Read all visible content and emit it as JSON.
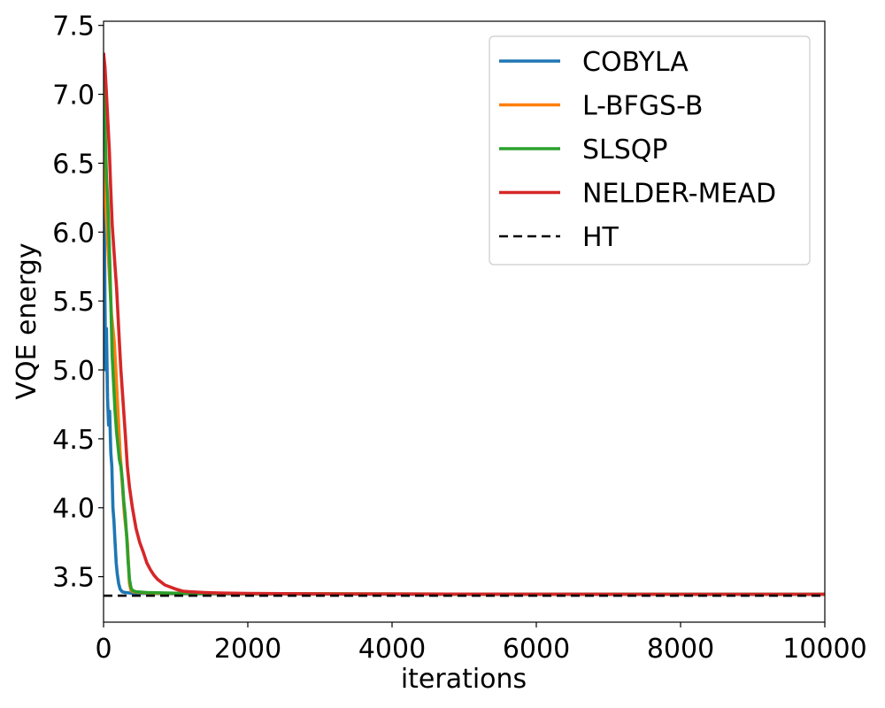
{
  "chart_data": {
    "type": "line",
    "xlabel": "iterations",
    "ylabel": "VQE energy",
    "xlim": [
      0,
      10000
    ],
    "ylim": [
      3.17,
      7.53
    ],
    "xticks": [
      0,
      2000,
      4000,
      6000,
      8000,
      10000
    ],
    "xtick_labels": [
      "0",
      "2000",
      "4000",
      "6000",
      "8000",
      "10000"
    ],
    "yticks": [
      3.5,
      4.0,
      4.5,
      5.0,
      5.5,
      6.0,
      6.5,
      7.0,
      7.5
    ],
    "ytick_labels": [
      "3.5",
      "4.0",
      "4.5",
      "5.0",
      "5.5",
      "6.0",
      "6.5",
      "7.0",
      "7.5"
    ],
    "grid": false,
    "legend_position": "top-right",
    "series": [
      {
        "name": "COBYLA",
        "color": "#1f77b4",
        "style": "solid",
        "x": [
          0,
          10,
          20,
          30,
          40,
          55,
          70,
          85,
          100,
          115,
          130,
          145,
          160,
          175,
          190,
          210,
          230,
          260,
          300,
          400,
          600,
          1000,
          2000,
          4000,
          6000,
          8000,
          10000
        ],
        "y": [
          7.3,
          6.2,
          5.5,
          5.0,
          5.3,
          4.8,
          4.6,
          4.7,
          4.4,
          4.3,
          4.0,
          3.9,
          3.75,
          3.6,
          3.52,
          3.45,
          3.41,
          3.39,
          3.385,
          3.38,
          3.378,
          3.376,
          3.374,
          3.373,
          3.372,
          3.372,
          3.372
        ]
      },
      {
        "name": "L-BFGS-B",
        "color": "#ff7f0e",
        "style": "solid",
        "x": [
          0,
          15,
          30,
          50,
          70,
          90,
          110,
          130,
          150,
          170,
          190,
          210,
          230,
          250,
          270,
          290,
          310,
          330,
          345,
          360,
          380,
          420,
          500,
          700,
          1000,
          2000,
          4000,
          6000,
          8000,
          10000
        ],
        "y": [
          7.3,
          6.6,
          6.2,
          6.0,
          5.8,
          5.6,
          5.4,
          5.3,
          5.2,
          5.0,
          4.8,
          4.6,
          4.4,
          4.25,
          4.1,
          3.95,
          3.85,
          3.75,
          3.6,
          3.45,
          3.4,
          3.39,
          3.385,
          3.38,
          3.378,
          3.376,
          3.374,
          3.373,
          3.372,
          3.372
        ]
      },
      {
        "name": "SLSQP",
        "color": "#2ca02c",
        "style": "solid",
        "x": [
          0,
          20,
          40,
          60,
          80,
          100,
          120,
          140,
          160,
          180,
          200,
          220,
          240,
          260,
          280,
          300,
          320,
          340,
          360,
          380,
          400,
          450,
          600,
          1000,
          2000,
          4000,
          6000,
          8000,
          10000
        ],
        "y": [
          7.3,
          6.8,
          6.4,
          6.2,
          5.9,
          5.5,
          5.1,
          4.9,
          4.7,
          4.55,
          4.45,
          4.35,
          4.3,
          4.2,
          4.05,
          3.95,
          3.8,
          3.62,
          3.48,
          3.42,
          3.4,
          3.39,
          3.385,
          3.38,
          3.377,
          3.374,
          3.373,
          3.372,
          3.372
        ]
      },
      {
        "name": "NELDER-MEAD",
        "color": "#d62728",
        "style": "solid",
        "x": [
          0,
          20,
          40,
          60,
          80,
          100,
          120,
          140,
          160,
          180,
          200,
          220,
          240,
          260,
          280,
          300,
          330,
          360,
          400,
          450,
          500,
          550,
          600,
          650,
          700,
          750,
          800,
          850,
          900,
          950,
          1000,
          1100,
          1200,
          1400,
          1600,
          2000,
          3000,
          4000,
          6000,
          8000,
          10000
        ],
        "y": [
          7.3,
          7.2,
          7.0,
          6.8,
          6.6,
          6.3,
          6.05,
          5.9,
          5.75,
          5.6,
          5.4,
          5.2,
          5.0,
          4.85,
          4.7,
          4.55,
          4.3,
          4.15,
          4.0,
          3.85,
          3.75,
          3.68,
          3.6,
          3.55,
          3.51,
          3.48,
          3.46,
          3.44,
          3.43,
          3.42,
          3.41,
          3.395,
          3.39,
          3.385,
          3.381,
          3.378,
          3.375,
          3.374,
          3.373,
          3.372,
          3.372
        ]
      },
      {
        "name": "HT",
        "color": "#000000",
        "style": "dashed",
        "x": [
          0,
          10000
        ],
        "y": [
          3.362,
          3.362
        ]
      }
    ]
  }
}
